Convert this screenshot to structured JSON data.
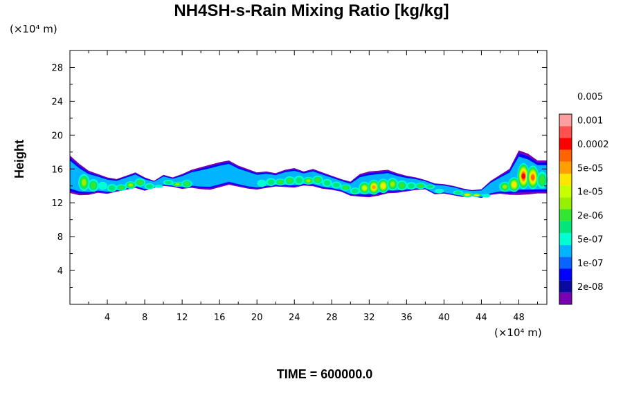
{
  "chart_data": {
    "type": "heatmap",
    "title": "NH4SH-s-Rain Mixing Ratio [kg/kg]",
    "xlabel": "",
    "ylabel": "Height",
    "x_unit_label": "(×10⁴ m)",
    "y_unit_label": "(×10⁴ m)",
    "xlim": [
      0,
      51
    ],
    "ylim": [
      0,
      30
    ],
    "x_ticks": [
      4,
      8,
      12,
      16,
      20,
      24,
      28,
      32,
      36,
      40,
      44,
      48
    ],
    "y_ticks": [
      4,
      8,
      12,
      16,
      20,
      24,
      28
    ],
    "footer": "TIME = 600000.0",
    "colorbar": {
      "levels": [
        "2e-08",
        "1e-07",
        "5e-07",
        "2e-06",
        "1e-05",
        "5e-05",
        "0.0002",
        "0.001",
        "0.005"
      ],
      "colors": [
        "#7a00b4",
        "#0a0aa0",
        "#0000ff",
        "#0a64ff",
        "#00b4ff",
        "#00ffd2",
        "#00e67a",
        "#32e632",
        "#96f000",
        "#c8ff00",
        "#ffe600",
        "#ffa000",
        "#ff6400",
        "#ff0000",
        "#ff5050",
        "#ff9ea0"
      ]
    },
    "layer": {
      "bottom": [
        12.8,
        12.6,
        12.7,
        13.0,
        12.9,
        13.2,
        13.4,
        13.6,
        13.3,
        13.7,
        13.9,
        13.8,
        13.5,
        13.6,
        13.4,
        13.3,
        13.6,
        13.9,
        13.7,
        13.5,
        13.4,
        13.6,
        13.8,
        13.7,
        13.6,
        13.9,
        13.8,
        13.5,
        13.4,
        13.2,
        12.7,
        12.5,
        12.4,
        12.6,
        12.9,
        13.0,
        13.2,
        13.4,
        13.5,
        12.9,
        13.0,
        12.8,
        12.6,
        12.7,
        12.5,
        12.8,
        12.9,
        12.7,
        12.5,
        12.6,
        12.8,
        12.8
      ],
      "top": [
        17.6,
        16.6,
        15.8,
        15.4,
        15.0,
        14.8,
        15.2,
        15.6,
        15.0,
        14.6,
        15.3,
        15.0,
        15.4,
        15.9,
        16.2,
        16.5,
        16.8,
        17.0,
        16.4,
        16.0,
        15.6,
        15.7,
        15.5,
        15.9,
        16.1,
        15.7,
        16.0,
        15.6,
        15.2,
        14.8,
        14.5,
        15.4,
        15.7,
        15.8,
        15.9,
        15.5,
        15.2,
        15.0,
        14.7,
        14.3,
        14.2,
        14.0,
        13.7,
        13.5,
        13.6,
        14.6,
        15.3,
        16.0,
        18.2,
        17.8,
        17.0,
        17.0
      ],
      "peak": [
        3,
        8,
        7,
        5,
        6,
        7,
        8,
        7,
        6,
        5,
        6,
        8,
        7,
        5,
        3,
        1,
        2,
        2,
        4,
        4,
        5,
        6,
        7,
        7,
        6,
        8,
        7,
        6,
        6,
        7,
        6,
        9,
        11,
        10,
        8,
        7,
        6,
        7,
        6,
        5,
        4,
        6,
        10,
        10,
        5,
        4,
        8,
        10,
        13,
        12,
        7,
        5
      ],
      "hollow": [
        0,
        0,
        0,
        0,
        0,
        0,
        0,
        0,
        0,
        0,
        0,
        0,
        0,
        1,
        1,
        1,
        1,
        1,
        1,
        0,
        0,
        0,
        0,
        0,
        0,
        0,
        0,
        0,
        0,
        0,
        0,
        0,
        0,
        0,
        0,
        0,
        0,
        0,
        0,
        0,
        0,
        0,
        0,
        0,
        0,
        0,
        0,
        0,
        0,
        0,
        0,
        0
      ]
    }
  }
}
